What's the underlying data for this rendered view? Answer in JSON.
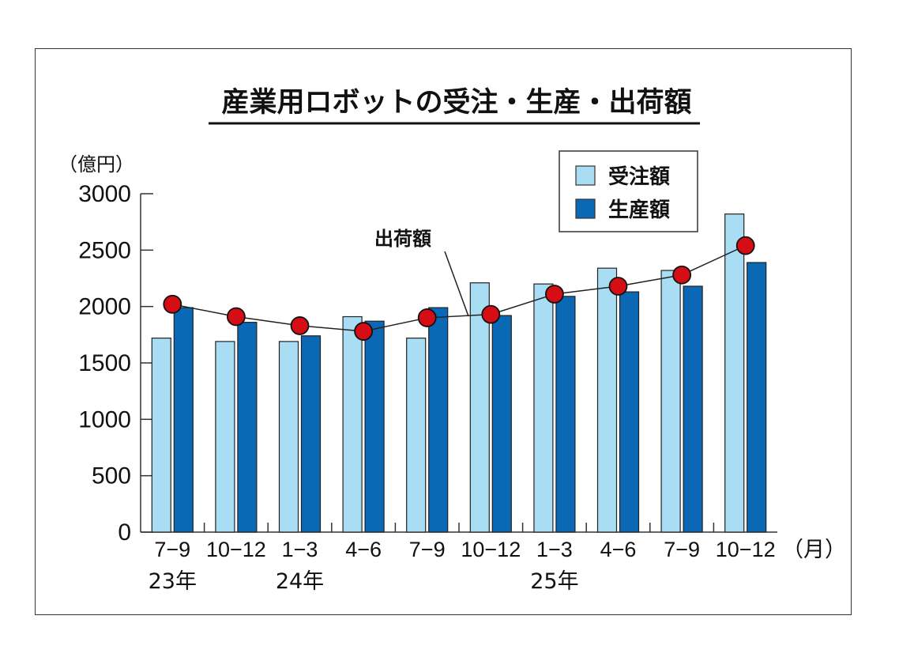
{
  "chart_data": {
    "type": "bar",
    "title": "産業用ロボットの受注・生産・出荷額",
    "ylabel": "（億円）",
    "xunit": "（月）",
    "ylim": [
      0,
      3000
    ],
    "yticks": [
      0,
      500,
      1000,
      1500,
      2000,
      2500,
      3000
    ],
    "categories": [
      "7−9",
      "10−12",
      "1−3",
      "4−6",
      "7−9",
      "10−12",
      "1−3",
      "4−6",
      "7−9",
      "10−12"
    ],
    "year_labels": [
      {
        "label": "23年",
        "index": 0
      },
      {
        "label": "24年",
        "index": 2
      },
      {
        "label": "25年",
        "index": 6
      }
    ],
    "series": [
      {
        "name": "受注額",
        "kind": "bar",
        "color": "#a9ddf3",
        "values": [
          1720,
          1690,
          1690,
          1910,
          1720,
          2210,
          2200,
          2340,
          2320,
          2820
        ]
      },
      {
        "name": "生産額",
        "kind": "bar",
        "color": "#0a68b5",
        "values": [
          1990,
          1860,
          1740,
          1870,
          1990,
          1920,
          2090,
          2130,
          2180,
          2390
        ]
      },
      {
        "name": "出荷額",
        "kind": "line",
        "color": "#d40e14",
        "values": [
          2020,
          1910,
          1830,
          1780,
          1900,
          1930,
          2110,
          2180,
          2280,
          2540
        ]
      }
    ],
    "annotation": "出荷額"
  }
}
